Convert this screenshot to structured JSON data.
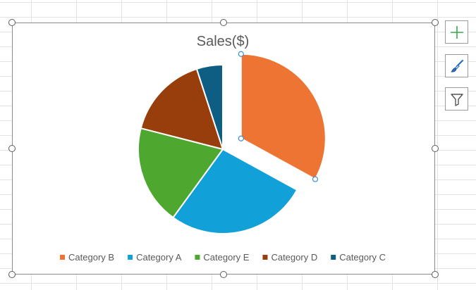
{
  "chart_data": {
    "type": "pie",
    "title": "Sales($)",
    "categories": [
      "Category B",
      "Category A",
      "Category E",
      "Category D",
      "Category C"
    ],
    "values": [
      33,
      27,
      19,
      16,
      5
    ],
    "colors": [
      "#ED7432",
      "#11A0D8",
      "#4EA72E",
      "#973E0C",
      "#0E5E83"
    ],
    "exploded": [
      "Category B"
    ],
    "legend_position": "bottom"
  },
  "toolbar": {
    "icons": [
      "chart-elements-plus-icon",
      "chart-styles-brush-icon",
      "chart-filters-funnel-icon"
    ]
  }
}
